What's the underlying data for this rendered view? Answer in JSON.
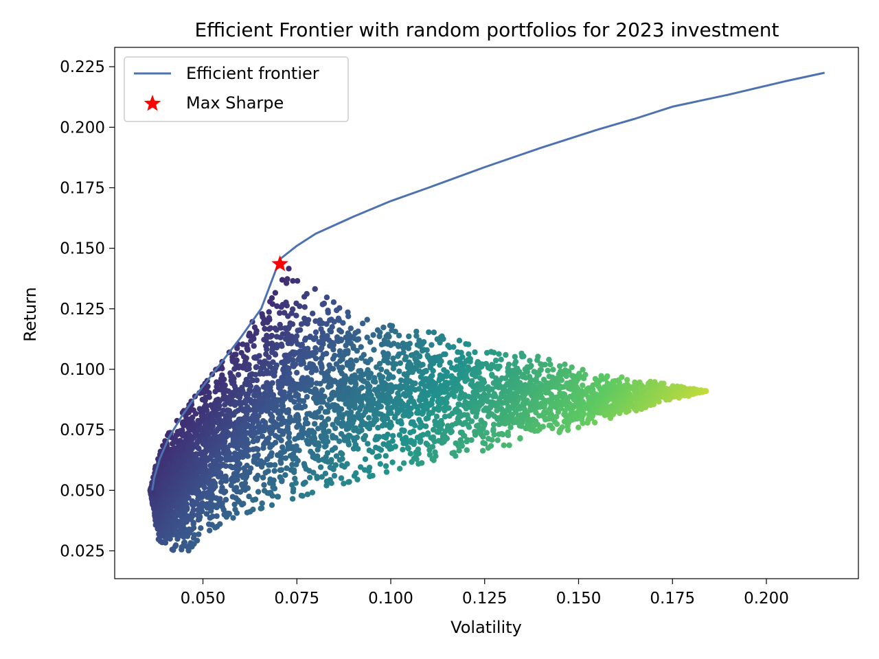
{
  "chart_data": {
    "type": "scatter",
    "title": "Efficient Frontier with random portfolios for 2023 investment",
    "xlabel": "Volatility",
    "ylabel": "Return",
    "xlim": [
      0.0265,
      0.2245
    ],
    "ylim": [
      0.0135,
      0.233
    ],
    "xticks": [
      0.05,
      0.075,
      0.1,
      0.125,
      0.15,
      0.175,
      0.2
    ],
    "xtick_labels": [
      "0.050",
      "0.075",
      "0.100",
      "0.125",
      "0.150",
      "0.175",
      "0.200"
    ],
    "yticks": [
      0.025,
      0.05,
      0.075,
      0.1,
      0.125,
      0.15,
      0.175,
      0.2,
      0.225
    ],
    "ytick_labels": [
      "0.025",
      "0.050",
      "0.075",
      "0.100",
      "0.125",
      "0.150",
      "0.175",
      "0.200",
      "0.225"
    ],
    "grid": false,
    "legend": {
      "placement": "top-left",
      "entries": [
        {
          "label": "Efficient frontier",
          "marker": "line",
          "color": "#4c72b0"
        },
        {
          "label": "Max Sharpe",
          "marker": "star",
          "color": "#ff0000"
        }
      ]
    },
    "series": [
      {
        "name": "Efficient frontier",
        "kind": "line",
        "color": "#4c72b0",
        "x": [
          0.0365,
          0.037,
          0.0385,
          0.041,
          0.0445,
          0.049,
          0.0545,
          0.06,
          0.0655,
          0.0705,
          0.075,
          0.08,
          0.09,
          0.1,
          0.11,
          0.125,
          0.14,
          0.155,
          0.165,
          0.175,
          0.19,
          0.205,
          0.2155
        ],
        "y": [
          0.05,
          0.055,
          0.063,
          0.072,
          0.081,
          0.091,
          0.102,
          0.113,
          0.125,
          0.1455,
          0.151,
          0.156,
          0.163,
          0.1695,
          0.175,
          0.1835,
          0.1915,
          0.199,
          0.2035,
          0.2085,
          0.2135,
          0.219,
          0.2225
        ]
      },
      {
        "name": "Max Sharpe",
        "kind": "marker",
        "color": "#ff0000",
        "x": [
          0.0705
        ],
        "y": [
          0.1435
        ]
      }
    ],
    "random_portfolios": {
      "colormap": "viridis",
      "color_by": "volatility",
      "colormap_stops": [
        "#440154",
        "#3b528b",
        "#21918c",
        "#5ec962",
        "#fde725"
      ],
      "count": 5000,
      "upper_edge": {
        "x": [
          0.036,
          0.038,
          0.041,
          0.045,
          0.05,
          0.055,
          0.06,
          0.065,
          0.07,
          0.073,
          0.08,
          0.09,
          0.1,
          0.11,
          0.12,
          0.14,
          0.155,
          0.17,
          0.184
        ],
        "y": [
          0.05,
          0.064,
          0.074,
          0.083,
          0.093,
          0.103,
          0.113,
          0.124,
          0.134,
          0.142,
          0.133,
          0.122,
          0.118,
          0.116,
          0.111,
          0.105,
          0.098,
          0.095,
          0.091
        ]
      },
      "lower_edge": {
        "x": [
          0.036,
          0.038,
          0.04,
          0.045,
          0.05,
          0.06,
          0.075,
          0.09,
          0.11,
          0.13,
          0.15,
          0.17,
          0.184
        ],
        "y": [
          0.05,
          0.03,
          0.027,
          0.023,
          0.032,
          0.04,
          0.047,
          0.054,
          0.062,
          0.068,
          0.076,
          0.085,
          0.091
        ]
      }
    }
  }
}
